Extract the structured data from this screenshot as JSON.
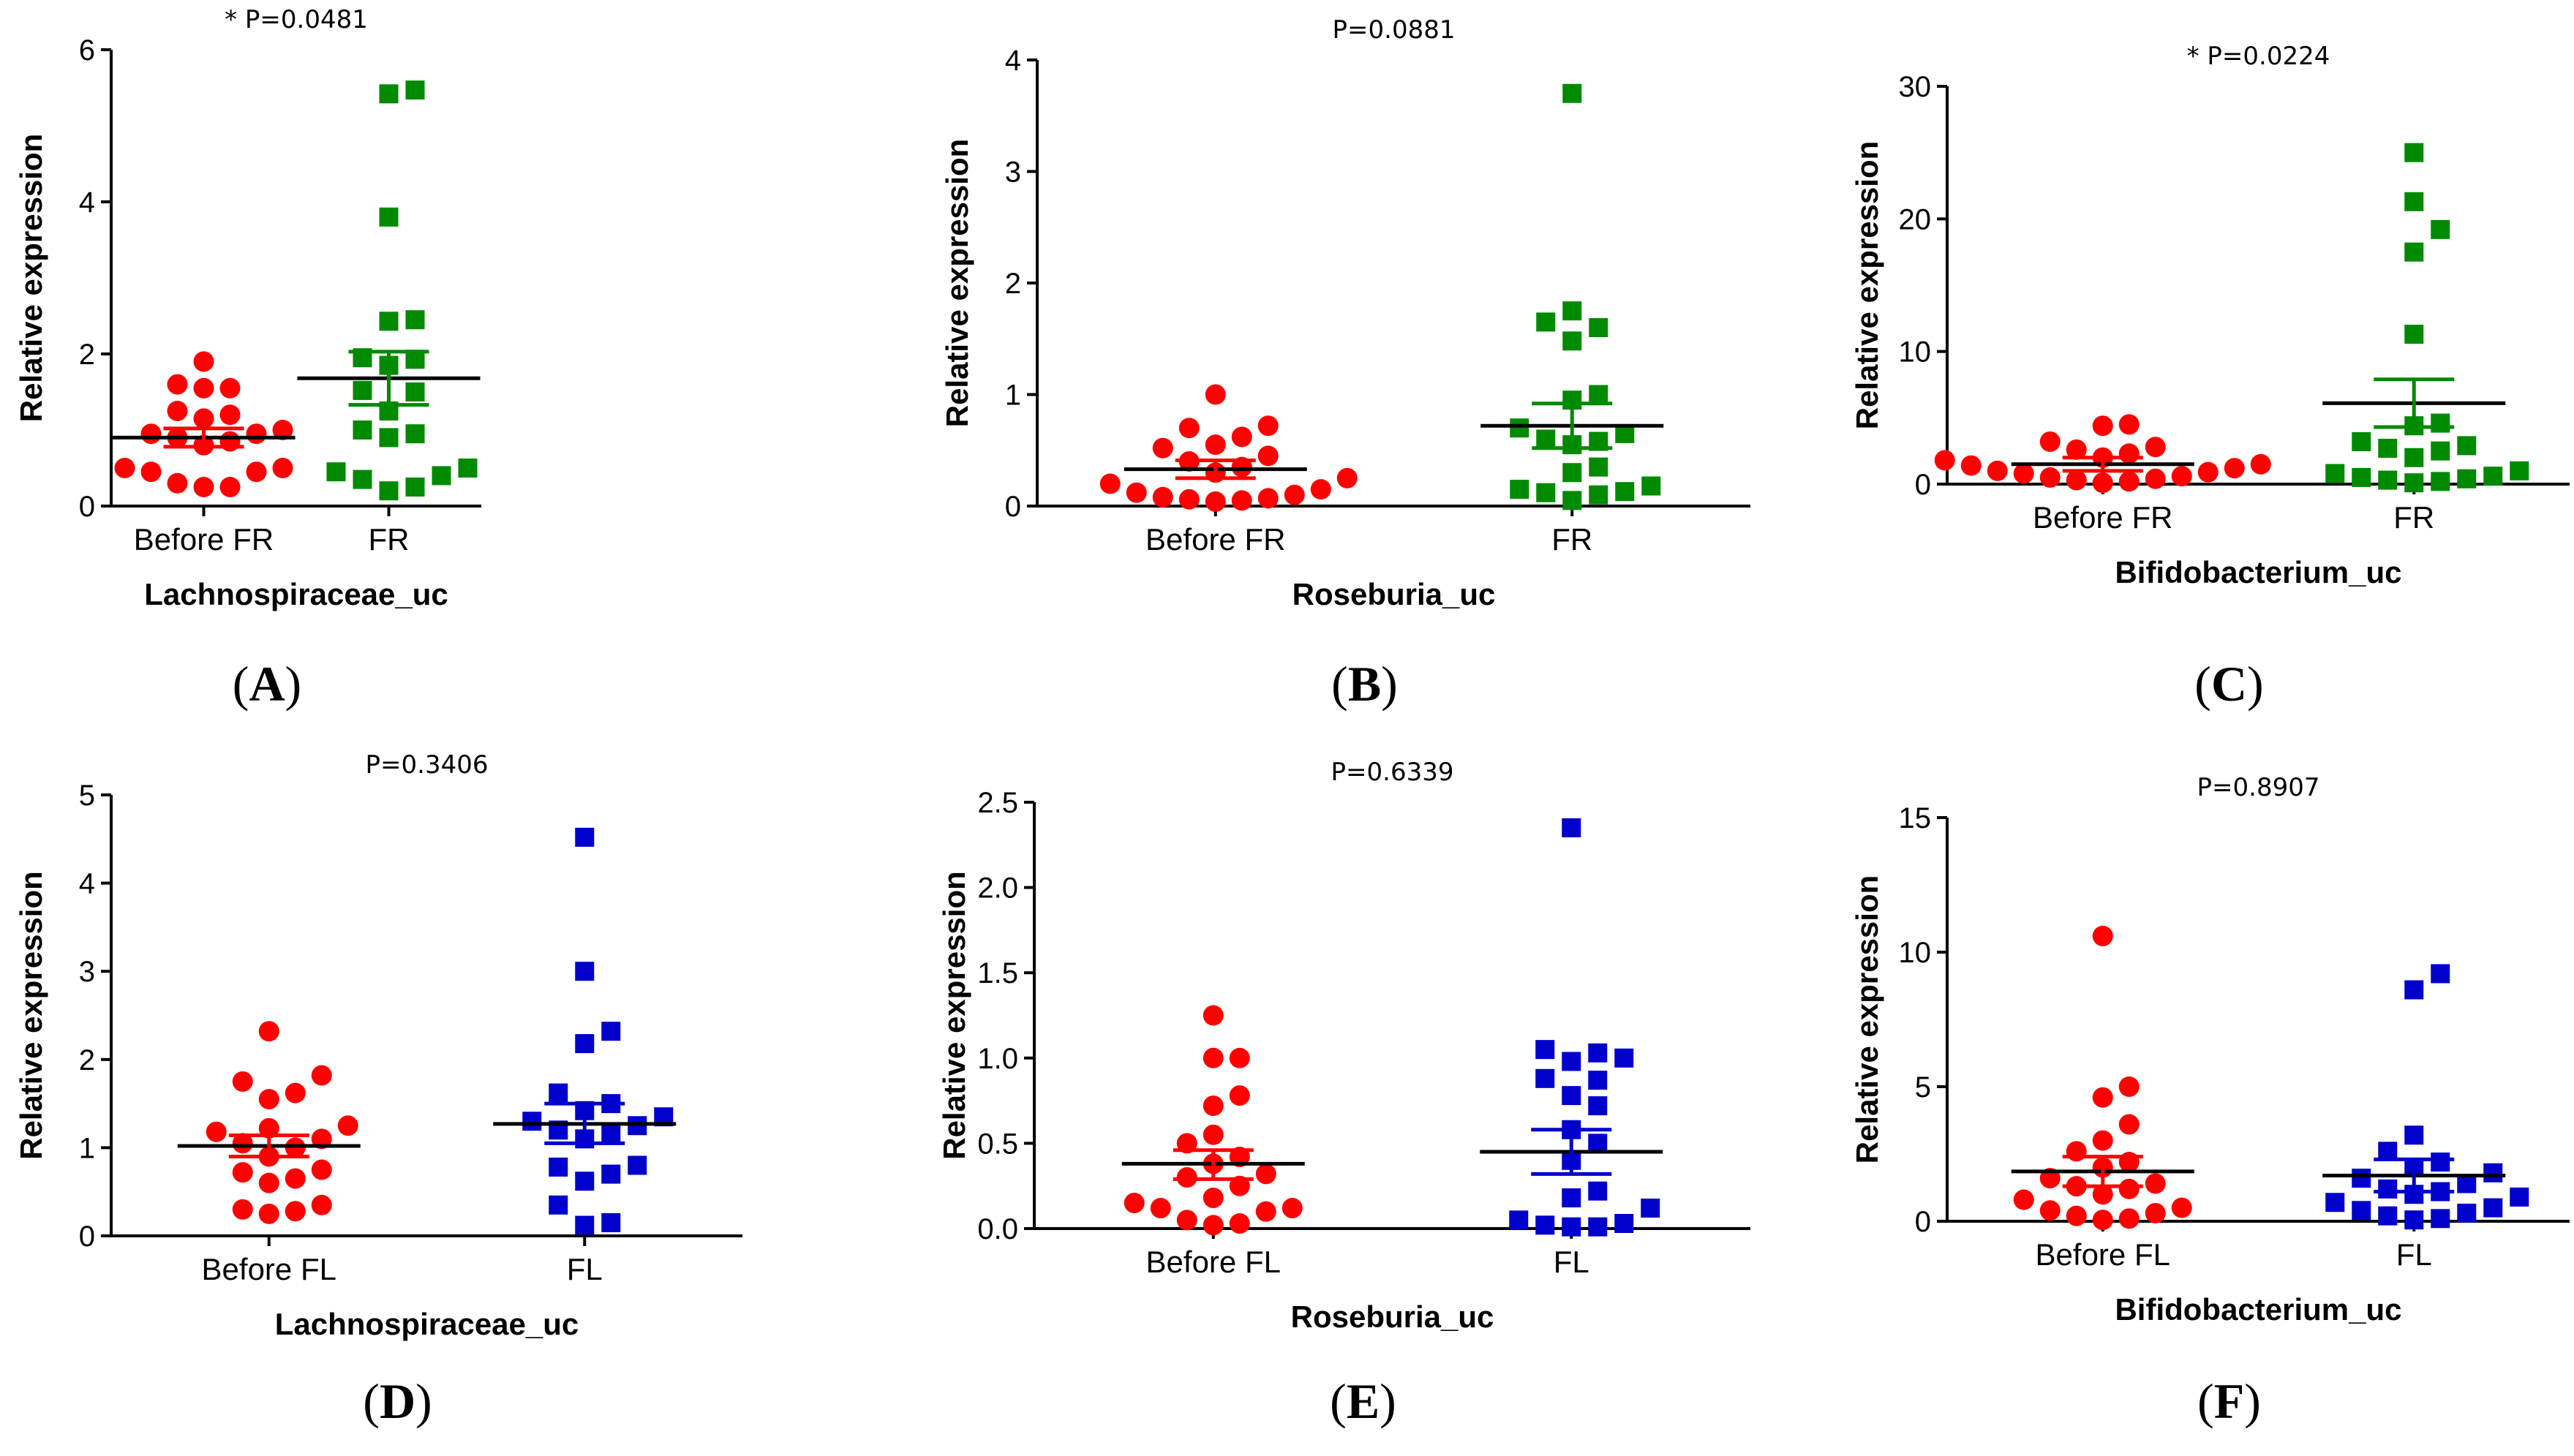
{
  "colors": {
    "before": "#ff0000",
    "after_fr": "#008a00",
    "after_fl": "#0000cc",
    "axis": "#000000"
  },
  "chart_data": [
    {
      "type": "scatter",
      "panel": "(A)",
      "panel_letter": "A",
      "p_label": "* P=0.0481",
      "xlabel": "Lachnospiraceae_uc",
      "ylabel": "Relative expression",
      "categories": [
        "Before FR",
        "FR"
      ],
      "ylim": [
        0,
        6
      ],
      "yticks": [
        0,
        2,
        4,
        6
      ],
      "ytick_labels": [
        "0",
        "2",
        "4",
        "6"
      ],
      "series": [
        {
          "name": "Before FR",
          "color": "#ff0000",
          "marker": "circle",
          "mean": 0.9,
          "sem": [
            0.78,
            1.02
          ],
          "values": [
            1.9,
            1.6,
            1.55,
            1.55,
            1.25,
            1.2,
            1.15,
            1.0,
            0.95,
            0.95,
            0.9,
            0.85,
            0.8,
            0.5,
            0.5,
            0.45,
            0.45,
            0.3,
            0.25,
            0.25
          ]
        },
        {
          "name": "FR",
          "color": "#008a00",
          "marker": "square",
          "mean": 1.68,
          "sem": [
            1.33,
            2.03
          ],
          "values": [
            5.47,
            5.42,
            3.8,
            2.45,
            2.43,
            1.95,
            1.93,
            1.85,
            1.52,
            1.5,
            1.25,
            1.0,
            0.95,
            0.9,
            0.5,
            0.45,
            0.4,
            0.35,
            0.25,
            0.2
          ]
        }
      ]
    },
    {
      "type": "scatter",
      "panel": "(B)",
      "panel_letter": "B",
      "p_label": "P=0.0881",
      "xlabel": "Roseburia_uc",
      "ylabel": "Relative expression",
      "categories": [
        "Before FR",
        "FR"
      ],
      "ylim": [
        0,
        4
      ],
      "yticks": [
        0,
        1,
        2,
        3,
        4
      ],
      "ytick_labels": [
        "0",
        "1",
        "2",
        "3",
        "4"
      ],
      "series": [
        {
          "name": "Before FR",
          "color": "#ff0000",
          "marker": "circle",
          "mean": 0.33,
          "sem": [
            0.25,
            0.41
          ],
          "values": [
            1.0,
            0.72,
            0.7,
            0.62,
            0.55,
            0.52,
            0.45,
            0.4,
            0.35,
            0.3,
            0.25,
            0.2,
            0.15,
            0.12,
            0.1,
            0.08,
            0.07,
            0.06,
            0.05,
            0.04
          ]
        },
        {
          "name": "FR",
          "color": "#008a00",
          "marker": "square",
          "mean": 0.72,
          "sem": [
            0.52,
            0.92
          ],
          "values": [
            3.7,
            1.75,
            1.65,
            1.6,
            1.48,
            1.0,
            0.95,
            0.7,
            0.65,
            0.6,
            0.58,
            0.55,
            0.35,
            0.3,
            0.18,
            0.15,
            0.13,
            0.12,
            0.1,
            0.05
          ]
        }
      ]
    },
    {
      "type": "scatter",
      "panel": "(C)",
      "panel_letter": "C",
      "p_label": "* P=0.0224",
      "xlabel": "Bifidobacterium_uc",
      "ylabel": "Relative expression",
      "categories": [
        "Before FR",
        "FR"
      ],
      "ylim": [
        0,
        30
      ],
      "yticks": [
        0,
        10,
        20,
        30
      ],
      "ytick_labels": [
        "0",
        "10",
        "20",
        "30"
      ],
      "series": [
        {
          "name": "Before FR",
          "color": "#ff0000",
          "marker": "circle",
          "mean": 1.5,
          "sem": [
            1.0,
            2.0
          ],
          "values": [
            4.5,
            4.4,
            3.2,
            2.8,
            2.6,
            2.3,
            2.0,
            1.8,
            1.5,
            1.4,
            1.2,
            1.0,
            0.9,
            0.8,
            0.6,
            0.5,
            0.4,
            0.3,
            0.2,
            0.1
          ]
        },
        {
          "name": "FR",
          "color": "#008a00",
          "marker": "square",
          "mean": 6.1,
          "sem": [
            4.3,
            7.9
          ],
          "values": [
            25.0,
            21.3,
            19.2,
            17.5,
            11.3,
            4.6,
            4.4,
            3.2,
            2.9,
            2.7,
            2.5,
            2.0,
            1.0,
            0.8,
            0.6,
            0.5,
            0.4,
            0.3,
            0.2,
            0.1
          ]
        }
      ]
    },
    {
      "type": "scatter",
      "panel": "(D)",
      "panel_letter": "D",
      "p_label": "P=0.3406",
      "xlabel": "Lachnospiraceae_uc",
      "ylabel": "Relative expression",
      "categories": [
        "Before FL",
        "FL"
      ],
      "ylim": [
        0,
        5
      ],
      "yticks": [
        0,
        1,
        2,
        3,
        4,
        5
      ],
      "ytick_labels": [
        "0",
        "1",
        "2",
        "3",
        "4",
        "5"
      ],
      "series": [
        {
          "name": "Before FL",
          "color": "#ff0000",
          "marker": "circle",
          "mean": 1.02,
          "sem": [
            0.9,
            1.14
          ],
          "values": [
            2.32,
            1.82,
            1.75,
            1.62,
            1.55,
            1.25,
            1.22,
            1.18,
            1.1,
            1.05,
            1.0,
            0.9,
            0.75,
            0.72,
            0.65,
            0.6,
            0.35,
            0.3,
            0.28,
            0.25
          ]
        },
        {
          "name": "FL",
          "color": "#0000cc",
          "marker": "square",
          "mean": 1.27,
          "sem": [
            1.05,
            1.5
          ],
          "values": [
            4.52,
            3.0,
            2.32,
            2.18,
            1.62,
            1.5,
            1.42,
            1.35,
            1.3,
            1.25,
            1.2,
            1.15,
            1.1,
            0.8,
            0.78,
            0.7,
            0.62,
            0.35,
            0.15,
            0.12
          ]
        }
      ]
    },
    {
      "type": "scatter",
      "panel": "(E)",
      "panel_letter": "E",
      "p_label": "P=0.6339",
      "xlabel": "Roseburia_uc",
      "ylabel": "Relative expression",
      "categories": [
        "Before FL",
        "FL"
      ],
      "ylim": [
        0,
        2.5
      ],
      "yticks": [
        0,
        0.5,
        1.0,
        1.5,
        2.0,
        2.5
      ],
      "ytick_labels": [
        "0.0",
        "0.5",
        "1.0",
        "1.5",
        "2.0",
        "2.5"
      ],
      "series": [
        {
          "name": "Before FL",
          "color": "#ff0000",
          "marker": "circle",
          "mean": 0.38,
          "sem": [
            0.29,
            0.46
          ],
          "values": [
            1.25,
            1.0,
            1.0,
            0.78,
            0.72,
            0.55,
            0.5,
            0.42,
            0.38,
            0.32,
            0.3,
            0.25,
            0.18,
            0.15,
            0.12,
            0.12,
            0.1,
            0.05,
            0.03,
            0.02
          ]
        },
        {
          "name": "FL",
          "color": "#0000cc",
          "marker": "square",
          "mean": 0.45,
          "sem": [
            0.32,
            0.58
          ],
          "values": [
            2.35,
            1.05,
            1.03,
            1.0,
            0.98,
            0.88,
            0.87,
            0.78,
            0.72,
            0.58,
            0.5,
            0.4,
            0.22,
            0.18,
            0.12,
            0.05,
            0.03,
            0.02,
            0.01,
            0.01
          ]
        }
      ]
    },
    {
      "type": "scatter",
      "panel": "(F)",
      "panel_letter": "F",
      "p_label": "P=0.8907",
      "xlabel": "Bifidobacterium_uc",
      "ylabel": "Relative expression",
      "categories": [
        "Before FL",
        "FL"
      ],
      "ylim": [
        0,
        15
      ],
      "yticks": [
        0,
        5,
        10,
        15
      ],
      "ytick_labels": [
        "0",
        "5",
        "10",
        "15"
      ],
      "series": [
        {
          "name": "Before FL",
          "color": "#ff0000",
          "marker": "circle",
          "mean": 1.85,
          "sem": [
            1.3,
            2.4
          ],
          "values": [
            10.6,
            5.0,
            4.6,
            3.6,
            3.0,
            2.6,
            2.2,
            2.0,
            1.6,
            1.4,
            1.3,
            1.2,
            1.0,
            0.8,
            0.5,
            0.4,
            0.3,
            0.2,
            0.1,
            0.05
          ]
        },
        {
          "name": "FL",
          "color": "#0000cc",
          "marker": "square",
          "mean": 1.7,
          "sem": [
            1.1,
            2.3
          ],
          "values": [
            9.2,
            8.6,
            3.2,
            2.6,
            2.2,
            2.0,
            1.8,
            1.6,
            1.4,
            1.2,
            1.1,
            1.0,
            0.9,
            0.7,
            0.5,
            0.4,
            0.3,
            0.2,
            0.1,
            0.05
          ]
        }
      ]
    }
  ]
}
